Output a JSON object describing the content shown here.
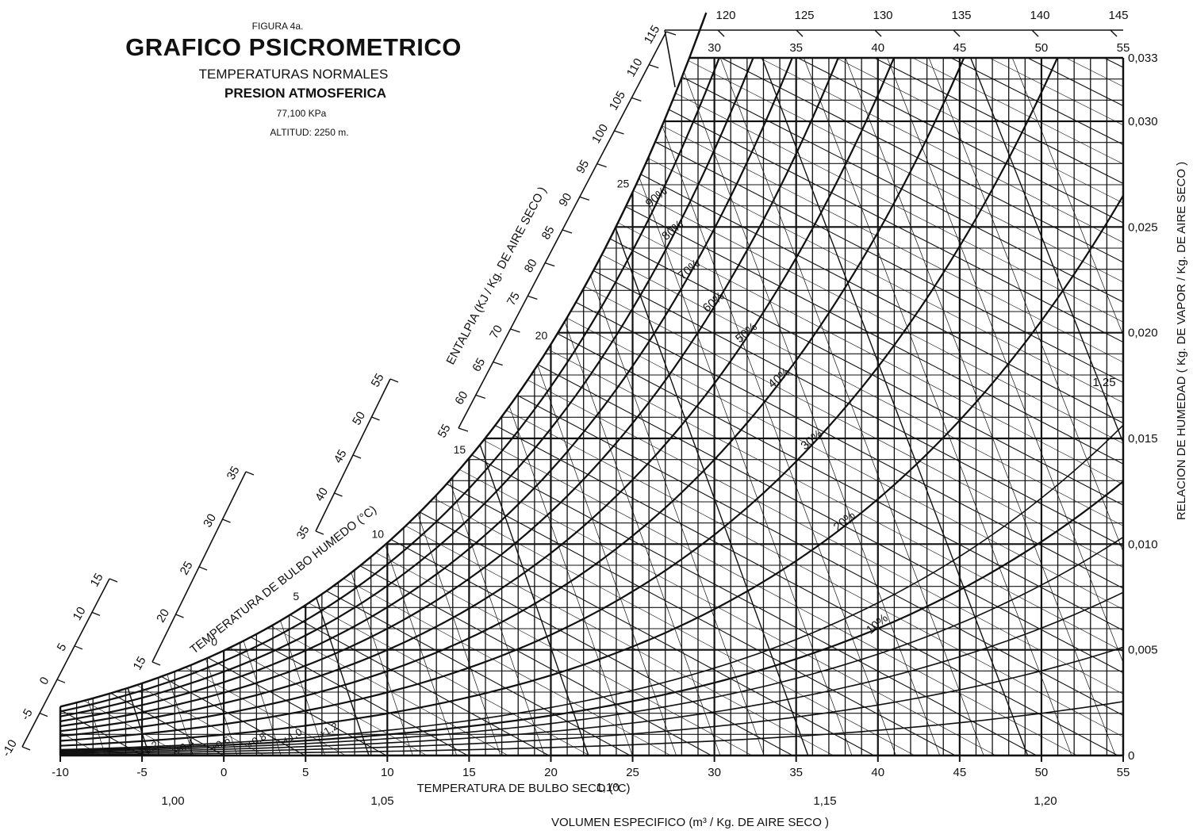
{
  "header": {
    "figure": "FIGURA 4a.",
    "title": "GRAFICO PSICROMETRICO",
    "subtitle1": "TEMPERATURAS NORMALES",
    "subtitle2": "PRESION ATMOSFERICA",
    "subtitle3": "77,100 KPa",
    "subtitle4": "ALTITUD: 2250 m."
  },
  "chart_data": {
    "type": "psychrometric",
    "xlabel": "TEMPERATURA DE BULBO SECO (°C)",
    "ylabel": "RELACION DE HUMEDAD ( Kg. DE VAPOR / Kg. DE AIRE SECO )",
    "enthalpy_label": "ENTALPIA (KJ / Kg. DE AIRE SECO )",
    "wetbulb_label": "TEMPERATURA DE BULBO HUMEDO (°C)",
    "volume_label": "VOLUMEN ESPECIFICO (m³ / Kg. DE AIRE SECO )",
    "xlim": [
      -10,
      55
    ],
    "ylim": [
      0,
      0.033
    ],
    "x_ticks": [
      "-10",
      "-5",
      "0",
      "5",
      "10",
      "15",
      "20",
      "25",
      "30",
      "35",
      "40",
      "45",
      "50",
      "55"
    ],
    "y_ticks": [
      {
        "value": 0,
        "label": "0"
      },
      {
        "value": 0.005,
        "label": "0,005"
      },
      {
        "value": 0.01,
        "label": "0,010"
      },
      {
        "value": 0.015,
        "label": "0,015"
      },
      {
        "value": 0.02,
        "label": "0,020"
      },
      {
        "value": 0.025,
        "label": "0,025"
      },
      {
        "value": 0.03,
        "label": "0,030"
      },
      {
        "value": 0.033,
        "label": "0,033"
      }
    ],
    "top_temp_labels": [
      "30",
      "35",
      "40",
      "45",
      "50",
      "55"
    ],
    "top_enthalpy_labels": [
      "120",
      "125",
      "130",
      "135",
      "140",
      "145"
    ],
    "relative_humidity": [
      {
        "rh": 0.1,
        "label": "10%"
      },
      {
        "rh": 0.2,
        "label": "20%"
      },
      {
        "rh": 0.3,
        "label": "30%"
      },
      {
        "rh": 0.4,
        "label": "40%"
      },
      {
        "rh": 0.5,
        "label": "50%"
      },
      {
        "rh": 0.6,
        "label": "60%"
      },
      {
        "rh": 0.7,
        "label": "70%"
      },
      {
        "rh": 0.8,
        "label": "80%"
      },
      {
        "rh": 0.9,
        "label": "90%"
      },
      {
        "rh": 1.0,
        "label": ""
      }
    ],
    "low_rh_curves": [
      {
        "rh": 0.02,
        "label": "+0,2"
      },
      {
        "rh": 0.04,
        "label": "+0,4"
      },
      {
        "rh": 0.06,
        "label": "+0,6"
      },
      {
        "rh": 0.08,
        "label": "+0,8"
      },
      {
        "rh": 0.1,
        "label": "+1,0"
      },
      {
        "rh": 0.12,
        "label": "+1,2"
      }
    ],
    "enthalpy_scale_left": [
      "-10",
      "-5",
      "0",
      "5",
      "10",
      "15"
    ],
    "enthalpy_scale_mid": [
      "35",
      "40",
      "45",
      "50",
      "55"
    ],
    "enthalpy_scale_right": [
      "55",
      "60",
      "65",
      "70",
      "75",
      "80",
      "85",
      "90",
      "95",
      "100",
      "105",
      "110",
      "115"
    ],
    "wetbulb_labels": [
      {
        "t": 0,
        "label": "0"
      },
      {
        "t": 5,
        "label": "5"
      },
      {
        "t": 10,
        "label": "10"
      },
      {
        "t": 15,
        "label": "15"
      },
      {
        "t": 20,
        "label": "20"
      },
      {
        "t": 25,
        "label": "25"
      }
    ],
    "specific_volume": [
      {
        "v": 1.0,
        "label": "1,00"
      },
      {
        "v": 1.05,
        "label": "1,05"
      },
      {
        "v": 1.1,
        "label": "1,10"
      },
      {
        "v": 1.15,
        "label": "1,15"
      },
      {
        "v": 1.2,
        "label": "1,20"
      },
      {
        "v": 1.25,
        "label": "1,25"
      }
    ],
    "grid": true
  }
}
